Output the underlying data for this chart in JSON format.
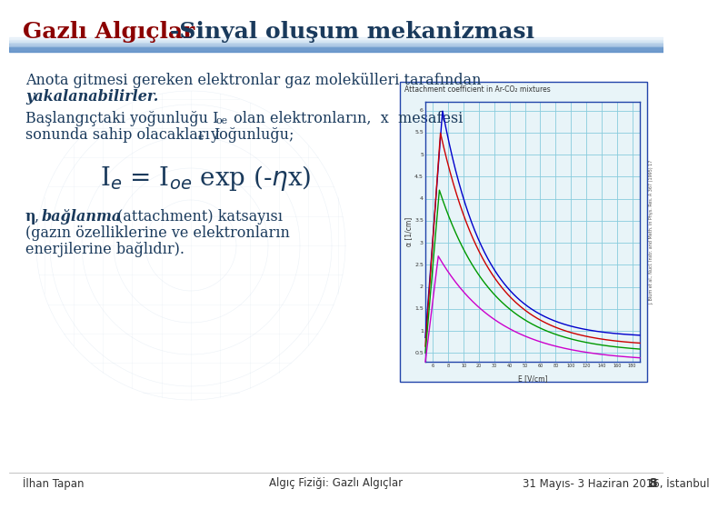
{
  "title_part1": "Gazlı Algıçlar",
  "title_part2": "-Sinyal oluşum mekanizması",
  "title_color1": "#8B0000",
  "title_color2": "#1a3a5c",
  "title_fontsize": 18,
  "slide_bg": "#ffffff",
  "footer_text_left": "İlhan Tapan",
  "footer_text_center": "Algıç Fiziği: Gazlı Algıçlar",
  "footer_text_right": "31 Mayıs- 3 Haziran 2016, İstanbul",
  "footer_page": "8",
  "body_text1_line1": "Anota gitmesi gereken elektronlar gaz molekülleri tarafından",
  "body_text1_line2_bold_italic": "yakalanabilirler.",
  "body_text2_line1a": "Başlangıçtaki yoğunluğu I",
  "body_text2_sub1": "oe",
  "body_text2_line1b": " olan elektronların,  x  mesafesi",
  "body_text2_line2a": "sonunda sahip olacakları I",
  "body_text2_sub2": "e",
  "body_text2_line2b": " yoğunluğu;",
  "eta_line1_bold": "η",
  "eta_line1_comma": ", ",
  "eta_line1_italic": "bağlanma",
  "eta_line1_rest": " (attachment) katsayısı",
  "eta_line2": "(gazın özelliklerine ve elektronların",
  "eta_line3": "enerjilerine bağlıdır).",
  "text_color": "#1a3a5c",
  "chart_title": "Attachment coefficient in Ar-CO₂ mixtures",
  "chart_xlabel": "E [V/cm]",
  "chart_ylabel": "α [1/cm]",
  "chart_bg": "#e8f4f8",
  "chart_grid_color": "#88ccdd",
  "chart_border_color": "#2244aa",
  "curve_colors": [
    "#0000cc",
    "#cc0000",
    "#009900",
    "#cc00cc"
  ],
  "y_ticks": [
    0.5,
    1.0,
    1.5,
    2.0,
    2.5,
    3.0,
    3.5,
    4.0,
    4.5,
    5.0,
    5.5,
    6.0
  ],
  "y_min": 0.3,
  "y_max": 6.2
}
